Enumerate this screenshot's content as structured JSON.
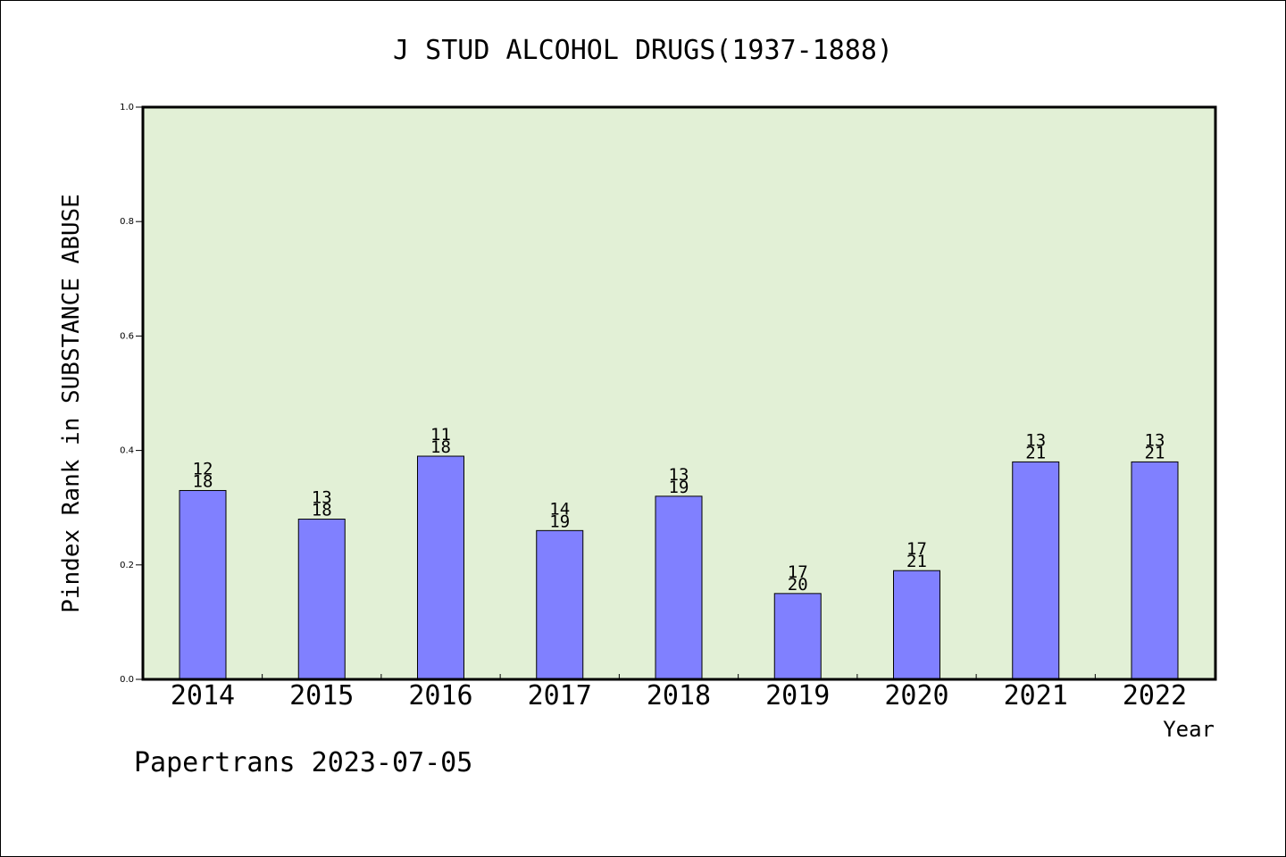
{
  "chart_data": {
    "type": "bar",
    "title": "J STUD ALCOHOL DRUGS(1937-1888)",
    "xlabel": "Year",
    "ylabel": "Pindex Rank in SUBSTANCE ABUSE",
    "ylim": [
      0,
      1.0
    ],
    "yticks": [
      "0.0",
      "0.2",
      "0.4",
      "0.6",
      "0.8",
      "1.0"
    ],
    "categories": [
      "2014",
      "2015",
      "2016",
      "2017",
      "2018",
      "2019",
      "2020",
      "2021",
      "2022"
    ],
    "values": [
      0.33,
      0.28,
      0.39,
      0.26,
      0.32,
      0.15,
      0.19,
      0.38,
      0.38
    ],
    "bar_labels_top": [
      "12",
      "13",
      "11",
      "14",
      "13",
      "17",
      "17",
      "13",
      "13"
    ],
    "bar_labels_bottom": [
      "18",
      "18",
      "18",
      "19",
      "19",
      "20",
      "21",
      "21",
      "21"
    ],
    "grid": false,
    "legend": "none",
    "colors": {
      "bar_fill": "#8080ff",
      "plot_background": "#e2f0d6",
      "axis": "#000000"
    }
  },
  "footer": {
    "credit": "Papertrans 2023-07-05"
  }
}
